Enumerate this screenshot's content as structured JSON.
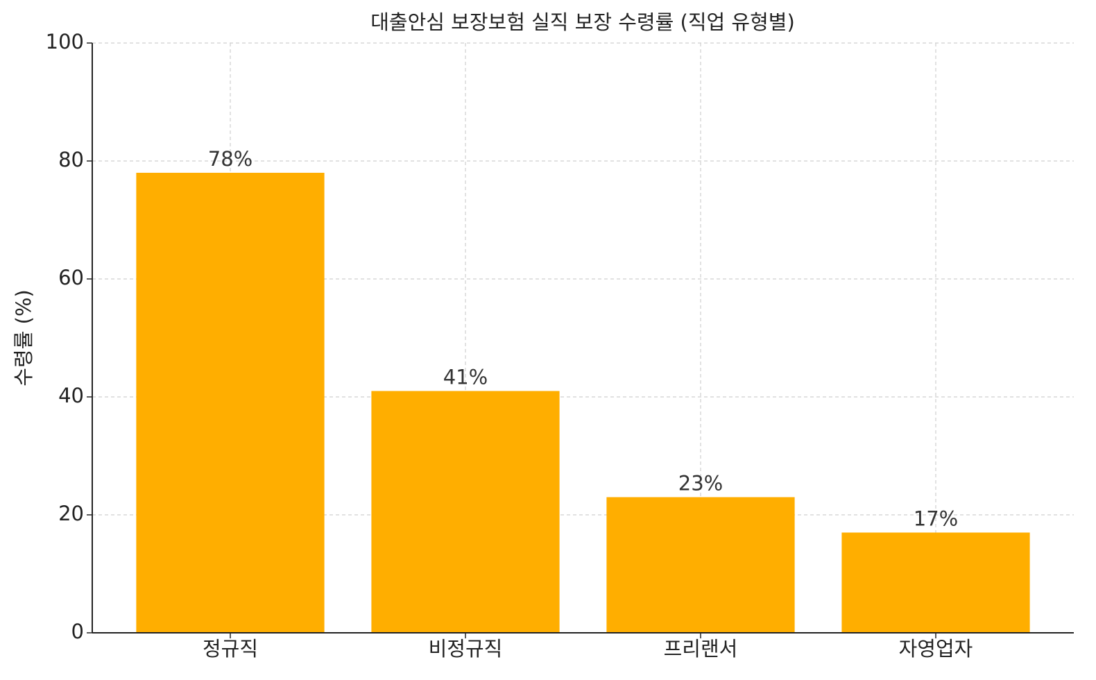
{
  "chart_data": {
    "type": "bar",
    "title": "대출안심 보장보험 실직 보장 수령률 (직업 유형별)",
    "y_label": "수령률 (%)",
    "categories": [
      "정규직",
      "비정규직",
      "프리랜서",
      "자영업자"
    ],
    "values": [
      78,
      41,
      23,
      17
    ],
    "value_labels": [
      "78%",
      "41%",
      "23%",
      "17%"
    ],
    "color": "#ffae00",
    "ylim": [
      0,
      100
    ],
    "yticks": [
      0,
      20,
      40,
      60,
      80,
      100
    ],
    "grid": true
  }
}
